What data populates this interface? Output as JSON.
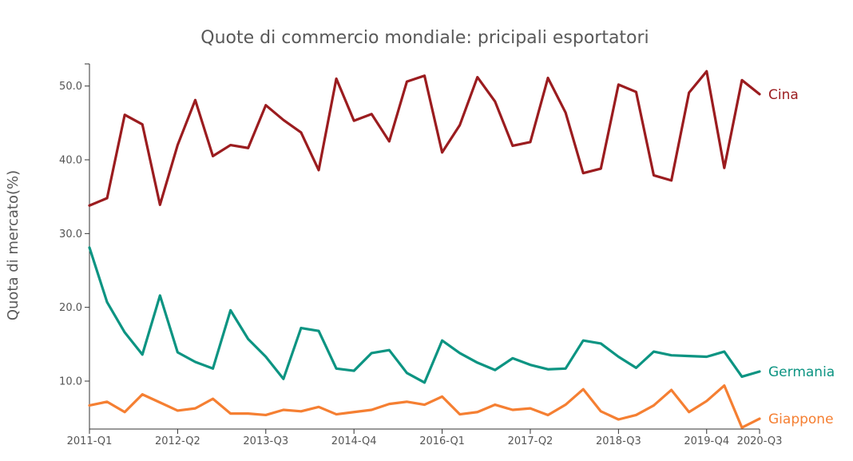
{
  "chart_data": {
    "type": "line",
    "title": "Quote di commercio mondiale: pricipali esportatori",
    "xlabel": "",
    "ylabel": "Quota di mercato(%)",
    "ylim": [
      3.5,
      53
    ],
    "yticks": [
      "10.0",
      "20.0",
      "30.0",
      "40.0",
      "50.0"
    ],
    "ytick_values": [
      10,
      20,
      30,
      40,
      50
    ],
    "xtick_labels": [
      "2011-Q1",
      "2012-Q2",
      "2013-Q3",
      "2014-Q4",
      "2016-Q1",
      "2017-Q2",
      "2018-Q3",
      "2019-Q4",
      "2020-Q3"
    ],
    "xtick_indices": [
      0,
      5,
      10,
      15,
      20,
      25,
      30,
      35,
      38
    ],
    "grid": false,
    "legend": "inline labels at right end of lines",
    "x": [
      "2011-Q1",
      "2011-Q2",
      "2011-Q3",
      "2011-Q4",
      "2012-Q1",
      "2012-Q2",
      "2012-Q3",
      "2012-Q4",
      "2013-Q1",
      "2013-Q2",
      "2013-Q3",
      "2013-Q4",
      "2014-Q1",
      "2014-Q2",
      "2014-Q3",
      "2014-Q4",
      "2015-Q1",
      "2015-Q2",
      "2015-Q3",
      "2015-Q4",
      "2016-Q1",
      "2016-Q2",
      "2016-Q3",
      "2016-Q4",
      "2017-Q1",
      "2017-Q2",
      "2017-Q3",
      "2017-Q4",
      "2018-Q1",
      "2018-Q2",
      "2018-Q3",
      "2018-Q4",
      "2019-Q1",
      "2019-Q2",
      "2019-Q3",
      "2019-Q4",
      "2020-Q1",
      "2020-Q2",
      "2020-Q3"
    ],
    "series": [
      {
        "name": "Cina",
        "color": "#9b1c1f",
        "values": [
          33.8,
          34.8,
          46.1,
          44.8,
          33.9,
          42.0,
          48.1,
          40.5,
          42.0,
          41.6,
          47.4,
          45.4,
          43.7,
          38.6,
          51.0,
          45.3,
          46.2,
          42.5,
          50.6,
          51.4,
          41.0,
          44.7,
          51.2,
          47.9,
          41.9,
          42.4,
          51.1,
          46.4,
          38.2,
          38.8,
          50.2,
          49.2,
          37.9,
          37.2,
          49.1,
          52.0,
          38.9,
          50.8,
          48.9
        ]
      },
      {
        "name": "Germania",
        "color": "#0c9482",
        "values": [
          28.1,
          20.7,
          16.6,
          13.6,
          21.6,
          13.9,
          12.6,
          11.7,
          19.6,
          15.7,
          13.3,
          10.3,
          17.2,
          16.8,
          11.7,
          11.4,
          13.8,
          14.2,
          11.1,
          9.8,
          15.5,
          13.8,
          12.5,
          11.5,
          13.1,
          12.2,
          11.6,
          11.7,
          15.5,
          15.1,
          13.3,
          11.8,
          14.0,
          13.5,
          13.4,
          13.3,
          14.0,
          10.6,
          11.3
        ]
      },
      {
        "name": "Giappone",
        "color": "#f57f32",
        "values": [
          6.7,
          7.2,
          5.8,
          8.2,
          7.1,
          6.0,
          6.3,
          7.6,
          5.6,
          5.6,
          5.4,
          6.1,
          5.9,
          6.5,
          5.5,
          5.8,
          6.1,
          6.9,
          7.2,
          6.8,
          7.9,
          5.5,
          5.8,
          6.8,
          6.1,
          6.3,
          5.4,
          6.8,
          8.9,
          5.9,
          4.8,
          5.4,
          6.7,
          8.8,
          5.8,
          7.3,
          9.4,
          3.7,
          4.9
        ]
      }
    ]
  }
}
